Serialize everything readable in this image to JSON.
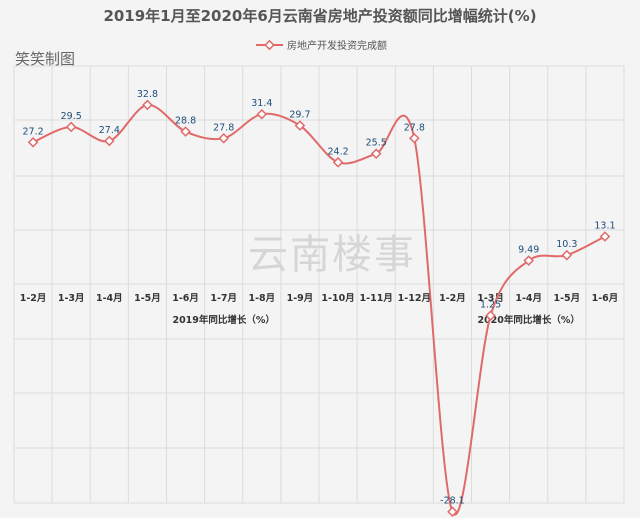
{
  "chart_data": {
    "type": "line",
    "title": "2019年1月至2020年6月云南省房地产投资额同比增幅统计(%)",
    "legend": [
      "房地产开发投资完成额"
    ],
    "legend_position": "top-center",
    "grid": true,
    "line_color": "#e06a6a",
    "categories": [
      "1-2月",
      "1-3月",
      "1-4月",
      "1-5月",
      "1-6月",
      "1-7月",
      "1-8月",
      "1-9月",
      "1-10月",
      "1-11月",
      "1-12月",
      "1-2月",
      "1-3月",
      "1-4月",
      "1-5月",
      "1-6月"
    ],
    "series": [
      {
        "name": "房地产开发投资完成额",
        "values": [
          27.2,
          29.5,
          27.4,
          32.8,
          28.8,
          27.8,
          31.4,
          29.7,
          24.2,
          25.5,
          27.8,
          -28.1,
          1.25,
          9.49,
          10.3,
          13.1
        ],
        "labels": [
          "27.2",
          "29.5",
          "27.4",
          "32.8",
          "28.8",
          "27.8",
          "31.4",
          "29.7",
          "24.2",
          "25.5",
          "27.8",
          "-28.1",
          "1.25",
          "9.49",
          "10.3",
          "13.1"
        ]
      }
    ],
    "groups": [
      {
        "label": "2019年同比增长（%）"
      },
      {
        "label": "2020年同比增长（%）"
      }
    ],
    "ylim": [
      -40,
      40
    ]
  },
  "watermarks": {
    "corner": "笑笑制图",
    "center": "云南楼事"
  }
}
